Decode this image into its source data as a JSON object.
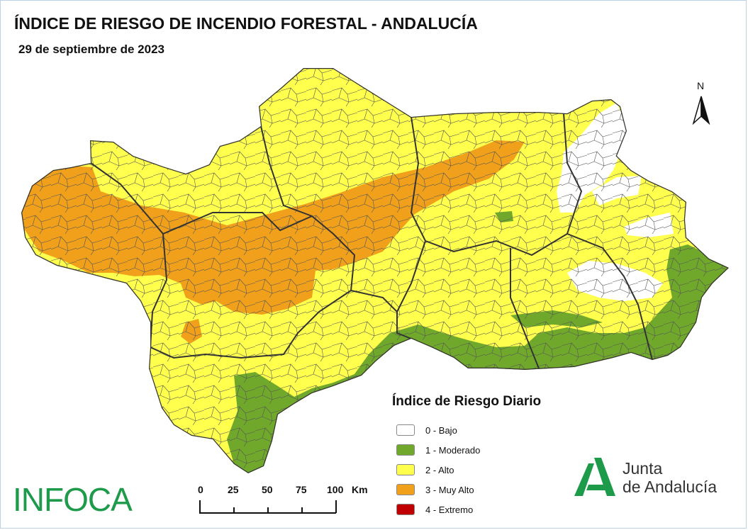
{
  "header": {
    "title": "ÍNDICE DE RIESGO DE INCENDIO FORESTAL - ANDALUCÍA",
    "date": "29 de septiembre de 2023"
  },
  "north_arrow": {
    "label": "N"
  },
  "legend": {
    "title": "Índice de Riesgo Diario",
    "items": [
      {
        "label": "0 - Bajo",
        "color": "#ffffff"
      },
      {
        "label": "1 - Moderado",
        "color": "#6fa82a"
      },
      {
        "label": "2 - Alto",
        "color": "#ffff4d"
      },
      {
        "label": "3 - Muy Alto",
        "color": "#f0a01a"
      },
      {
        "label": "4 - Extremo",
        "color": "#c00000"
      }
    ]
  },
  "scale_bar": {
    "ticks": [
      "0",
      "25",
      "50",
      "75",
      "100"
    ],
    "unit": "Km"
  },
  "logos": {
    "infoca": "INFOCA",
    "junta_line1": "Junta",
    "junta_line2": "de Andalucía",
    "junta_color": "#1e9a4b"
  }
}
